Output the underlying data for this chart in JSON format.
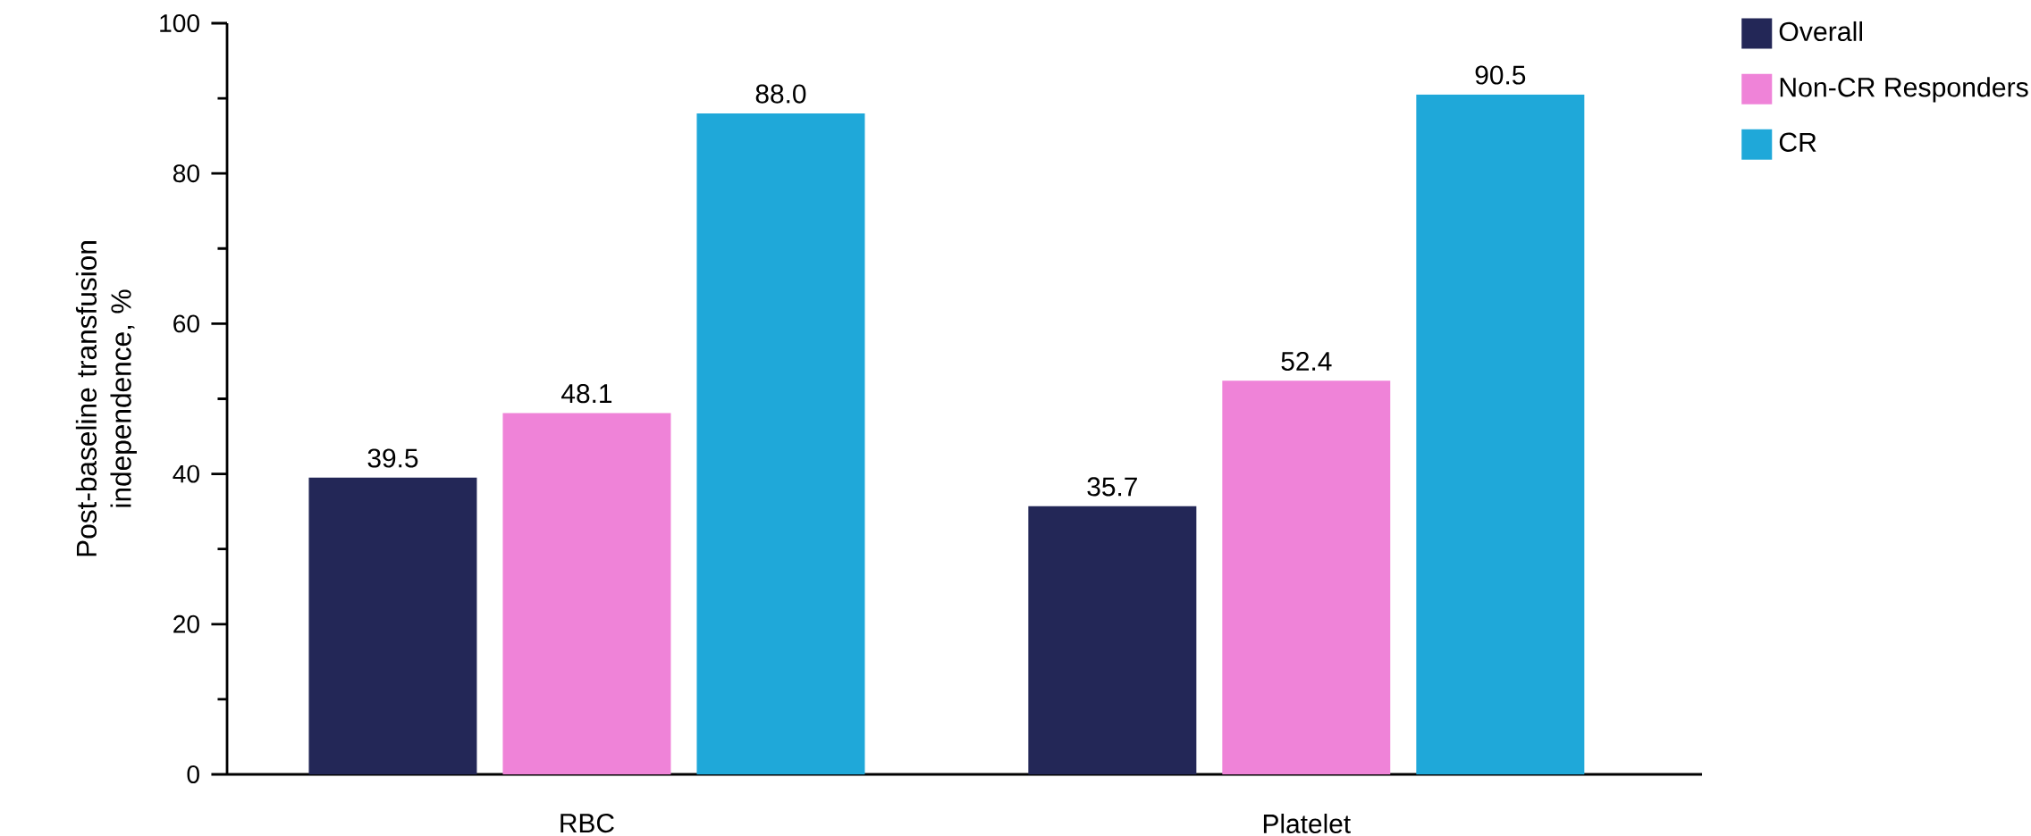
{
  "chart_data": {
    "type": "bar",
    "ylabel": "Post-baseline transfusion independence, %",
    "categories": [
      "RBC",
      "Platelet"
    ],
    "series": [
      {
        "name": "Overall",
        "color": "#232757",
        "values": [
          39.5,
          35.7
        ],
        "value_labels": [
          "39.5",
          "35.7"
        ]
      },
      {
        "name": "Non-CR Responders",
        "color": "#ef83d8",
        "values": [
          48.1,
          52.4
        ],
        "value_labels": [
          "48.1",
          "52.4"
        ]
      },
      {
        "name": "CR",
        "color": "#1fa8d9",
        "values": [
          88.0,
          90.5
        ],
        "value_labels": [
          "88.0",
          "90.5"
        ]
      }
    ],
    "ylim": [
      0,
      100
    ],
    "yticks": [
      0,
      20,
      40,
      60,
      80,
      100
    ],
    "legend": "top right",
    "grid": false
  }
}
